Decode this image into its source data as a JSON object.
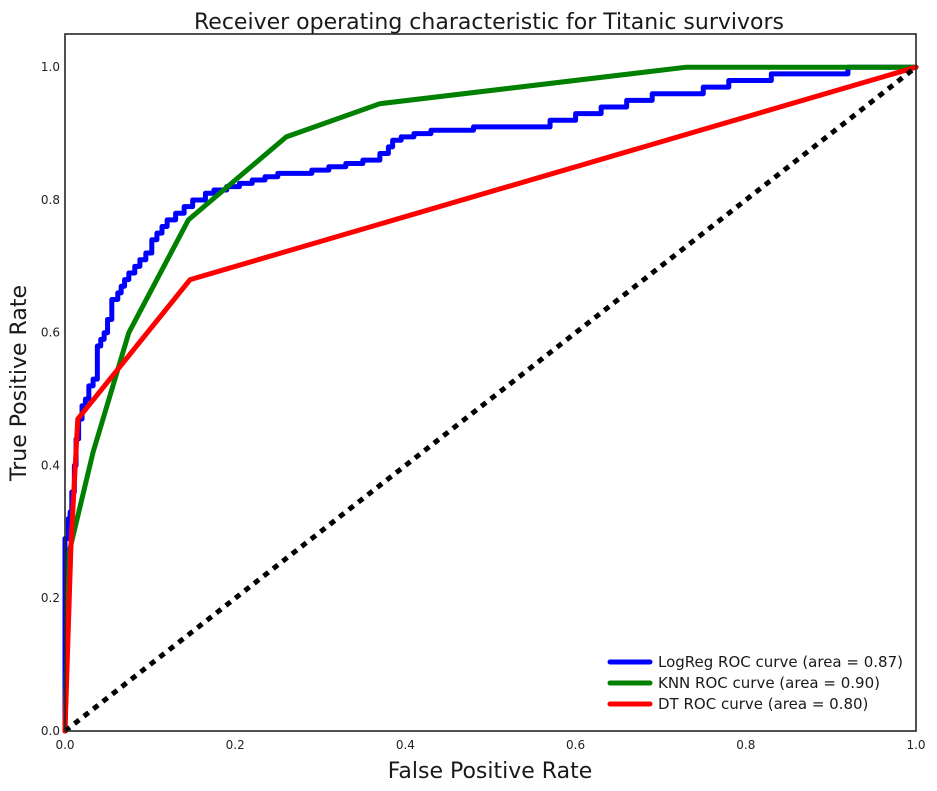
{
  "chart_data": {
    "type": "line",
    "title": "Receiver operating characteristic for Titanic survivors",
    "xlabel": "False Positive Rate",
    "ylabel": "True Positive Rate",
    "xlim": [
      0.0,
      1.0
    ],
    "ylim": [
      0.0,
      1.05
    ],
    "x_ticks": [
      "0.0",
      "0.2",
      "0.4",
      "0.6",
      "0.8",
      "1.0"
    ],
    "y_ticks": [
      "0.0",
      "0.2",
      "0.4",
      "0.6",
      "0.8",
      "1.0"
    ],
    "grid": false,
    "legend_position": "lower-right",
    "series": [
      {
        "name": "LogReg ROC curve (area = 0.87)",
        "color": "#0000ff",
        "style": "solid",
        "x": [
          0.0,
          0.0,
          0.004,
          0.004,
          0.006,
          0.006,
          0.008,
          0.008,
          0.011,
          0.011,
          0.013,
          0.013,
          0.016,
          0.016,
          0.02,
          0.02,
          0.024,
          0.024,
          0.028,
          0.028,
          0.033,
          0.033,
          0.038,
          0.038,
          0.042,
          0.042,
          0.046,
          0.046,
          0.05,
          0.05,
          0.055,
          0.055,
          0.062,
          0.062,
          0.066,
          0.066,
          0.07,
          0.07,
          0.075,
          0.075,
          0.082,
          0.082,
          0.088,
          0.088,
          0.095,
          0.095,
          0.102,
          0.102,
          0.108,
          0.108,
          0.114,
          0.114,
          0.12,
          0.12,
          0.13,
          0.13,
          0.14,
          0.14,
          0.15,
          0.15,
          0.165,
          0.165,
          0.175,
          0.175,
          0.19,
          0.19,
          0.205,
          0.205,
          0.22,
          0.22,
          0.235,
          0.235,
          0.25,
          0.25,
          0.29,
          0.29,
          0.31,
          0.31,
          0.33,
          0.33,
          0.35,
          0.35,
          0.37,
          0.37,
          0.38,
          0.38,
          0.385,
          0.385,
          0.395,
          0.395,
          0.41,
          0.41,
          0.43,
          0.43,
          0.48,
          0.48,
          0.57,
          0.57,
          0.6,
          0.6,
          0.63,
          0.63,
          0.66,
          0.66,
          0.69,
          0.69,
          0.75,
          0.75,
          0.78,
          0.78,
          0.83,
          0.83,
          0.92,
          0.92,
          1.0
        ],
        "y": [
          0.0,
          0.29,
          0.29,
          0.32,
          0.32,
          0.33,
          0.33,
          0.36,
          0.36,
          0.4,
          0.4,
          0.44,
          0.44,
          0.47,
          0.47,
          0.49,
          0.49,
          0.5,
          0.5,
          0.52,
          0.52,
          0.53,
          0.53,
          0.58,
          0.58,
          0.59,
          0.59,
          0.6,
          0.6,
          0.62,
          0.62,
          0.65,
          0.65,
          0.66,
          0.66,
          0.67,
          0.67,
          0.68,
          0.68,
          0.69,
          0.69,
          0.7,
          0.7,
          0.71,
          0.71,
          0.72,
          0.72,
          0.74,
          0.74,
          0.75,
          0.75,
          0.76,
          0.76,
          0.77,
          0.77,
          0.78,
          0.78,
          0.79,
          0.79,
          0.8,
          0.8,
          0.81,
          0.81,
          0.815,
          0.815,
          0.82,
          0.82,
          0.825,
          0.825,
          0.83,
          0.83,
          0.835,
          0.835,
          0.84,
          0.84,
          0.845,
          0.845,
          0.85,
          0.85,
          0.855,
          0.855,
          0.86,
          0.86,
          0.87,
          0.87,
          0.88,
          0.88,
          0.89,
          0.89,
          0.895,
          0.895,
          0.9,
          0.9,
          0.905,
          0.905,
          0.91,
          0.91,
          0.92,
          0.92,
          0.93,
          0.93,
          0.94,
          0.94,
          0.95,
          0.95,
          0.96,
          0.96,
          0.97,
          0.97,
          0.98,
          0.98,
          0.99,
          0.99,
          1.0,
          1.0
        ]
      },
      {
        "name": "KNN ROC curve (area = 0.90)",
        "color": "#008000",
        "style": "solid",
        "x": [
          0.0,
          0.005,
          0.033,
          0.075,
          0.145,
          0.26,
          0.37,
          0.73,
          1.0
        ],
        "y": [
          0.0,
          0.27,
          0.42,
          0.6,
          0.77,
          0.895,
          0.945,
          1.0,
          1.0
        ]
      },
      {
        "name": "DT ROC curve (area = 0.80)",
        "color": "#ff0000",
        "style": "solid",
        "x": [
          0.0,
          0.007,
          0.015,
          0.147,
          1.0
        ],
        "y": [
          0.0,
          0.28,
          0.47,
          0.68,
          1.0
        ]
      },
      {
        "name": "",
        "color": "#000000",
        "style": "dotted",
        "x": [
          0.0,
          1.0
        ],
        "y": [
          0.0,
          1.0
        ]
      }
    ]
  }
}
